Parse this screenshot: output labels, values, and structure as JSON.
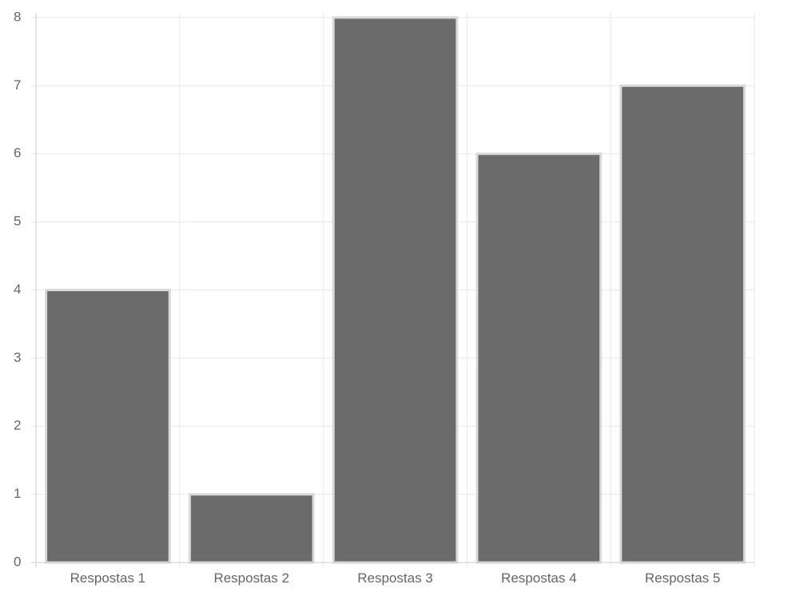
{
  "chart_data": {
    "type": "bar",
    "categories": [
      "Respostas 1",
      "Respostas 2",
      "Respostas 3",
      "Respostas 4",
      "Respostas 5"
    ],
    "values": [
      4,
      1,
      8,
      6,
      7
    ],
    "ylim": [
      0,
      8
    ],
    "yticks": [
      0,
      1,
      2,
      3,
      4,
      5,
      6,
      7,
      8
    ],
    "grid": true,
    "legend": "none",
    "colors": {
      "bar_fill": "#6b6b6b",
      "bar_border": "#d9d9d9",
      "grid": "#e8e8e8",
      "axis": "#cccccc",
      "tick_text": "#666666"
    }
  }
}
